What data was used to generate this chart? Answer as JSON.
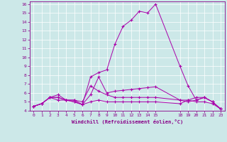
{
  "xlabel": "Windchill (Refroidissement éolien,°C)",
  "background_color": "#cce8e8",
  "line_color": "#aa00aa",
  "grid_color": "#ffffff",
  "xlim": [
    -0.5,
    23.5
  ],
  "ylim": [
    4,
    16.3
  ],
  "xtick_positions": [
    0,
    1,
    2,
    3,
    4,
    5,
    6,
    7,
    8,
    9,
    10,
    11,
    12,
    13,
    14,
    15,
    18,
    19,
    20,
    21,
    22,
    23
  ],
  "xtick_labels": [
    "0",
    "1",
    "2",
    "3",
    "4",
    "5",
    "6",
    "7",
    "8",
    "9",
    "10",
    "11",
    "12",
    "13",
    "14",
    "15",
    "18",
    "19",
    "20",
    "21",
    "22",
    "23"
  ],
  "yticks": [
    4,
    5,
    6,
    7,
    8,
    9,
    10,
    11,
    12,
    13,
    14,
    15,
    16
  ],
  "series": [
    {
      "x": [
        0,
        1,
        2,
        3,
        4,
        5,
        6,
        7,
        8,
        9,
        10,
        11,
        12,
        13,
        14,
        15,
        18,
        19,
        20,
        21,
        22,
        23
      ],
      "y": [
        4.5,
        4.8,
        5.5,
        5.8,
        5.2,
        5.2,
        4.7,
        7.8,
        8.3,
        8.6,
        11.5,
        13.5,
        14.2,
        15.2,
        15.0,
        16.0,
        9.0,
        6.8,
        5.2,
        5.5,
        5.0,
        4.2
      ]
    },
    {
      "x": [
        0,
        1,
        2,
        3,
        4,
        5,
        6,
        7,
        8,
        9,
        10,
        11,
        12,
        13,
        14,
        15,
        18,
        19,
        20,
        21,
        22,
        23
      ],
      "y": [
        4.5,
        4.8,
        5.5,
        5.2,
        5.2,
        5.0,
        4.7,
        5.8,
        7.8,
        6.0,
        6.2,
        6.3,
        6.4,
        6.5,
        6.6,
        6.7,
        5.2,
        5.0,
        5.2,
        5.5,
        5.0,
        4.2
      ]
    },
    {
      "x": [
        0,
        1,
        2,
        3,
        4,
        5,
        6,
        7,
        8,
        9,
        10,
        11,
        12,
        13,
        14,
        15,
        18,
        19,
        20,
        21,
        22,
        23
      ],
      "y": [
        4.5,
        4.8,
        5.5,
        5.5,
        5.2,
        5.2,
        5.0,
        6.8,
        6.2,
        5.8,
        5.5,
        5.5,
        5.5,
        5.5,
        5.5,
        5.5,
        5.2,
        5.2,
        5.0,
        5.0,
        4.8,
        4.2
      ]
    },
    {
      "x": [
        0,
        1,
        2,
        3,
        4,
        5,
        6,
        7,
        8,
        9,
        10,
        11,
        12,
        13,
        14,
        15,
        18,
        19,
        20,
        21,
        22,
        23
      ],
      "y": [
        4.5,
        4.8,
        5.5,
        5.5,
        5.2,
        5.0,
        4.7,
        5.0,
        5.2,
        5.0,
        5.0,
        5.0,
        5.0,
        5.0,
        5.0,
        5.0,
        4.8,
        5.2,
        5.5,
        5.5,
        5.0,
        4.2
      ]
    }
  ]
}
